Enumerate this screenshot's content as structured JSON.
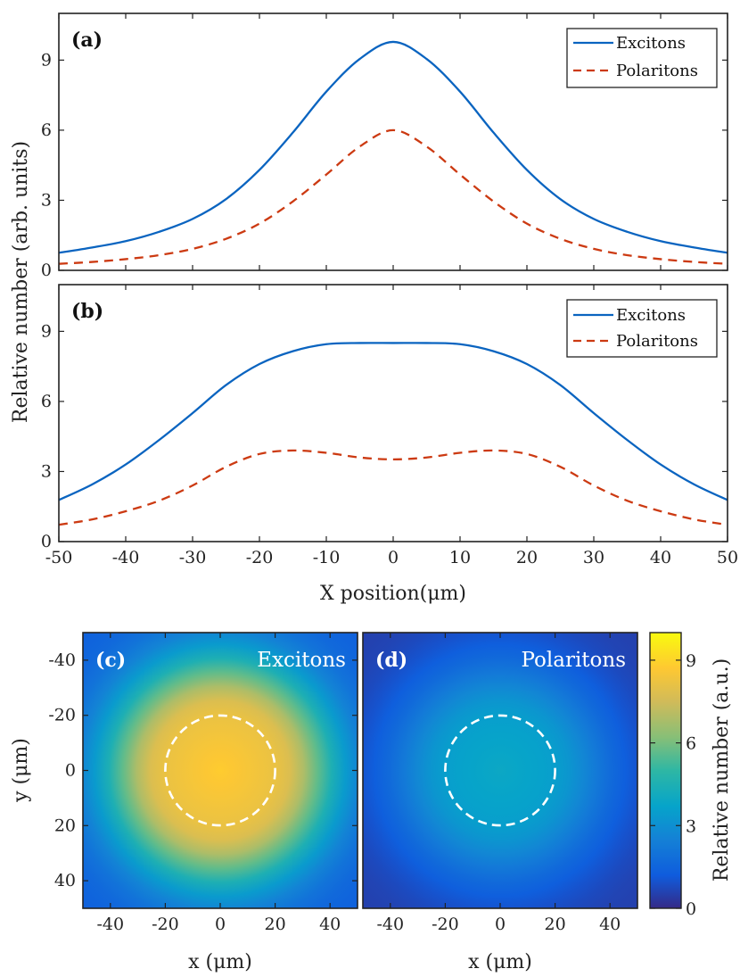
{
  "figure": {
    "shared_ylabel": "Relative number (arb. units)",
    "xlabel_top": "X position(μm)"
  },
  "chart_data": [
    {
      "id": "a",
      "type": "line",
      "panel_label": "(a)",
      "xlim": [
        -50,
        50
      ],
      "ylim": [
        0,
        11
      ],
      "yticks": [
        0,
        3,
        6,
        9
      ],
      "xticks": [
        -50,
        -40,
        -30,
        -20,
        -10,
        0,
        10,
        20,
        30,
        40,
        50
      ],
      "legend_position": "top-right",
      "x": [
        -50,
        -45,
        -40,
        -35,
        -30,
        -25,
        -20,
        -15,
        -10,
        -5,
        0,
        5,
        10,
        15,
        20,
        25,
        30,
        35,
        40,
        45,
        50
      ],
      "series": [
        {
          "name": "Excitons",
          "style": "solid",
          "color": "#0a64c0",
          "values": [
            0.75,
            0.98,
            1.25,
            1.65,
            2.2,
            3.05,
            4.3,
            5.9,
            7.65,
            9.05,
            9.78,
            9.05,
            7.65,
            5.9,
            4.3,
            3.05,
            2.2,
            1.65,
            1.25,
            0.98,
            0.75
          ]
        },
        {
          "name": "Polaritons",
          "style": "dashed",
          "color": "#cc3a12",
          "values": [
            0.28,
            0.36,
            0.48,
            0.65,
            0.92,
            1.35,
            2.0,
            2.95,
            4.1,
            5.3,
            6.0,
            5.3,
            4.1,
            2.95,
            2.0,
            1.35,
            0.92,
            0.65,
            0.48,
            0.36,
            0.28
          ]
        }
      ]
    },
    {
      "id": "b",
      "type": "line",
      "panel_label": "(b)",
      "xlim": [
        -50,
        50
      ],
      "ylim": [
        0,
        11
      ],
      "yticks": [
        0,
        3,
        6,
        9
      ],
      "xticks": [
        -50,
        -40,
        -30,
        -20,
        -10,
        0,
        10,
        20,
        30,
        40,
        50
      ],
      "xlabel": "X position(μm)",
      "legend_position": "top-right",
      "x": [
        -50,
        -45,
        -40,
        -35,
        -30,
        -25,
        -20,
        -15,
        -10,
        -5,
        0,
        5,
        10,
        15,
        20,
        25,
        30,
        35,
        40,
        45,
        50
      ],
      "series": [
        {
          "name": "Excitons",
          "style": "solid",
          "color": "#0a64c0",
          "values": [
            1.78,
            2.45,
            3.3,
            4.35,
            5.5,
            6.7,
            7.6,
            8.15,
            8.45,
            8.5,
            8.5,
            8.5,
            8.45,
            8.15,
            7.6,
            6.7,
            5.5,
            4.35,
            3.3,
            2.45,
            1.78
          ]
        },
        {
          "name": "Polaritons",
          "style": "dashed",
          "color": "#cc3a12",
          "values": [
            0.72,
            0.95,
            1.3,
            1.75,
            2.4,
            3.2,
            3.75,
            3.9,
            3.8,
            3.6,
            3.52,
            3.6,
            3.8,
            3.9,
            3.75,
            3.2,
            2.4,
            1.75,
            1.3,
            0.95,
            0.72
          ]
        }
      ]
    },
    {
      "id": "c",
      "type": "heatmap",
      "panel_label": "(c)",
      "title": "Excitons",
      "xlim": [
        -50,
        50
      ],
      "ylim": [
        -50,
        50
      ],
      "xticks": [
        -40,
        -20,
        0,
        20,
        40
      ],
      "yticks": [
        -40,
        -20,
        0,
        20,
        40
      ],
      "xlabel": "x (μm)",
      "ylabel": "y (μm)",
      "peak": 8.8,
      "edge_min": 1.3,
      "circle_radius": 20
    },
    {
      "id": "d",
      "type": "heatmap",
      "panel_label": "(d)",
      "title": "Polaritons",
      "xlim": [
        -50,
        50
      ],
      "ylim": [
        -50,
        50
      ],
      "xticks": [
        -40,
        -20,
        0,
        20,
        40
      ],
      "xlabel": "x (μm)",
      "peak": 3.9,
      "edge_min": 0.5,
      "circle_radius": 20
    },
    {
      "id": "colorbar",
      "type": "colorbar",
      "label": "Relative number (a.u.)",
      "range": [
        0,
        10
      ],
      "ticks": [
        0,
        3,
        6,
        9
      ]
    }
  ]
}
